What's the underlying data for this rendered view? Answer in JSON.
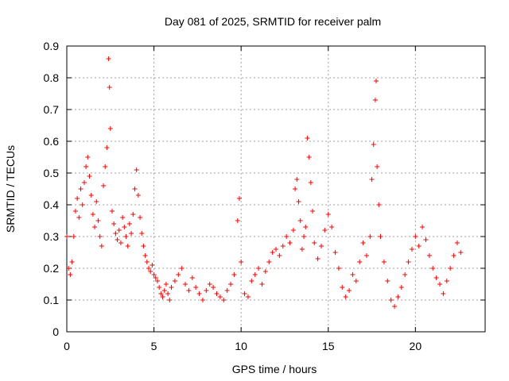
{
  "chart_data": {
    "type": "scatter",
    "title": "Day 081 of 2025, SRMTID for receiver palm",
    "xlabel": "GPS time / hours",
    "ylabel": "SRMTID / TECUs",
    "xlim": [
      0,
      24
    ],
    "ylim": [
      0,
      0.9
    ],
    "xticks": [
      0,
      5,
      10,
      15,
      20
    ],
    "yticks": [
      0,
      0.1,
      0.2,
      0.3,
      0.4,
      0.5,
      0.6,
      0.7,
      0.8,
      0.9
    ],
    "xtick_labels": [
      "0",
      "5",
      "10",
      "15",
      "20"
    ],
    "ytick_labels": [
      "0",
      "0.1",
      "0.2",
      "0.3",
      "0.4",
      "0.5",
      "0.6",
      "0.7",
      "0.8",
      "0.9"
    ],
    "grid": true,
    "marker": "+",
    "color": "#ff0000",
    "series": [
      {
        "name": "SRMTID",
        "points": [
          [
            0.0,
            0.3
          ],
          [
            0.1,
            0.2
          ],
          [
            0.2,
            0.18
          ],
          [
            0.3,
            0.22
          ],
          [
            0.4,
            0.3
          ],
          [
            0.5,
            0.38
          ],
          [
            0.6,
            0.42
          ],
          [
            0.7,
            0.36
          ],
          [
            0.8,
            0.45
          ],
          [
            0.9,
            0.4
          ],
          [
            1.0,
            0.47
          ],
          [
            1.1,
            0.52
          ],
          [
            1.2,
            0.55
          ],
          [
            1.3,
            0.49
          ],
          [
            1.4,
            0.43
          ],
          [
            1.5,
            0.37
          ],
          [
            1.6,
            0.33
          ],
          [
            1.7,
            0.41
          ],
          [
            1.8,
            0.35
          ],
          [
            1.9,
            0.3
          ],
          [
            2.0,
            0.27
          ],
          [
            2.1,
            0.46
          ],
          [
            2.2,
            0.52
          ],
          [
            2.3,
            0.58
          ],
          [
            2.4,
            0.86
          ],
          [
            2.45,
            0.77
          ],
          [
            2.5,
            0.64
          ],
          [
            2.6,
            0.38
          ],
          [
            2.7,
            0.34
          ],
          [
            2.8,
            0.31
          ],
          [
            2.9,
            0.29
          ],
          [
            3.0,
            0.32
          ],
          [
            3.1,
            0.28
          ],
          [
            3.2,
            0.36
          ],
          [
            3.3,
            0.33
          ],
          [
            3.4,
            0.3
          ],
          [
            3.5,
            0.27
          ],
          [
            3.6,
            0.34
          ],
          [
            3.7,
            0.31
          ],
          [
            3.8,
            0.37
          ],
          [
            3.9,
            0.45
          ],
          [
            4.0,
            0.51
          ],
          [
            4.1,
            0.43
          ],
          [
            4.2,
            0.36
          ],
          [
            4.3,
            0.31
          ],
          [
            4.4,
            0.27
          ],
          [
            4.5,
            0.24
          ],
          [
            4.6,
            0.22
          ],
          [
            4.7,
            0.2
          ],
          [
            4.8,
            0.19
          ],
          [
            4.9,
            0.21
          ],
          [
            5.0,
            0.18
          ],
          [
            5.1,
            0.17
          ],
          [
            5.2,
            0.16
          ],
          [
            5.3,
            0.14
          ],
          [
            5.4,
            0.12
          ],
          [
            5.5,
            0.11
          ],
          [
            5.6,
            0.13
          ],
          [
            5.7,
            0.15
          ],
          [
            5.8,
            0.12
          ],
          [
            5.9,
            0.1
          ],
          [
            6.0,
            0.14
          ],
          [
            6.2,
            0.16
          ],
          [
            6.4,
            0.18
          ],
          [
            6.6,
            0.2
          ],
          [
            6.8,
            0.15
          ],
          [
            7.0,
            0.13
          ],
          [
            7.2,
            0.17
          ],
          [
            7.4,
            0.14
          ],
          [
            7.6,
            0.12
          ],
          [
            7.8,
            0.1
          ],
          [
            8.0,
            0.13
          ],
          [
            8.2,
            0.15
          ],
          [
            8.4,
            0.14
          ],
          [
            8.6,
            0.12
          ],
          [
            8.8,
            0.11
          ],
          [
            9.0,
            0.1
          ],
          [
            9.2,
            0.13
          ],
          [
            9.4,
            0.15
          ],
          [
            9.6,
            0.18
          ],
          [
            9.8,
            0.35
          ],
          [
            9.9,
            0.42
          ],
          [
            10.0,
            0.22
          ],
          [
            10.2,
            0.12
          ],
          [
            10.4,
            0.11
          ],
          [
            10.6,
            0.16
          ],
          [
            10.8,
            0.18
          ],
          [
            11.0,
            0.2
          ],
          [
            11.2,
            0.15
          ],
          [
            11.4,
            0.19
          ],
          [
            11.6,
            0.22
          ],
          [
            11.8,
            0.25
          ],
          [
            12.0,
            0.26
          ],
          [
            12.2,
            0.24
          ],
          [
            12.4,
            0.27
          ],
          [
            12.6,
            0.3
          ],
          [
            12.8,
            0.28
          ],
          [
            13.0,
            0.32
          ],
          [
            13.1,
            0.45
          ],
          [
            13.2,
            0.48
          ],
          [
            13.3,
            0.41
          ],
          [
            13.4,
            0.35
          ],
          [
            13.5,
            0.26
          ],
          [
            13.6,
            0.3
          ],
          [
            13.7,
            0.33
          ],
          [
            13.8,
            0.61
          ],
          [
            13.9,
            0.55
          ],
          [
            14.0,
            0.47
          ],
          [
            14.1,
            0.38
          ],
          [
            14.2,
            0.28
          ],
          [
            14.4,
            0.23
          ],
          [
            14.6,
            0.27
          ],
          [
            14.8,
            0.32
          ],
          [
            15.0,
            0.37
          ],
          [
            15.2,
            0.33
          ],
          [
            15.4,
            0.25
          ],
          [
            15.6,
            0.2
          ],
          [
            15.8,
            0.14
          ],
          [
            16.0,
            0.11
          ],
          [
            16.2,
            0.13
          ],
          [
            16.4,
            0.18
          ],
          [
            16.6,
            0.16
          ],
          [
            16.8,
            0.22
          ],
          [
            17.0,
            0.28
          ],
          [
            17.2,
            0.24
          ],
          [
            17.4,
            0.3
          ],
          [
            17.5,
            0.48
          ],
          [
            17.6,
            0.59
          ],
          [
            17.7,
            0.73
          ],
          [
            17.75,
            0.79
          ],
          [
            17.8,
            0.52
          ],
          [
            17.9,
            0.4
          ],
          [
            18.0,
            0.3
          ],
          [
            18.2,
            0.22
          ],
          [
            18.4,
            0.16
          ],
          [
            18.6,
            0.1
          ],
          [
            18.8,
            0.08
          ],
          [
            19.0,
            0.11
          ],
          [
            19.2,
            0.14
          ],
          [
            19.4,
            0.18
          ],
          [
            19.6,
            0.22
          ],
          [
            19.8,
            0.26
          ],
          [
            20.0,
            0.3
          ],
          [
            20.2,
            0.27
          ],
          [
            20.4,
            0.33
          ],
          [
            20.6,
            0.29
          ],
          [
            20.8,
            0.24
          ],
          [
            21.0,
            0.2
          ],
          [
            21.2,
            0.17
          ],
          [
            21.4,
            0.15
          ],
          [
            21.6,
            0.12
          ],
          [
            21.8,
            0.16
          ],
          [
            22.0,
            0.2
          ],
          [
            22.2,
            0.24
          ],
          [
            22.4,
            0.28
          ],
          [
            22.6,
            0.25
          ]
        ]
      }
    ]
  }
}
